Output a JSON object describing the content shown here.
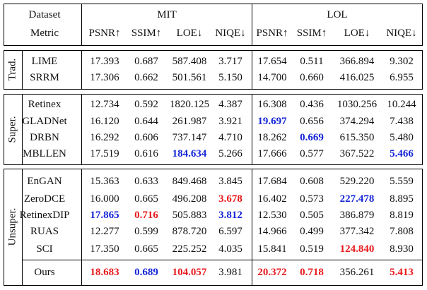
{
  "header": {
    "dataset_label": "Dataset",
    "metric_label": "Metric",
    "datasets": [
      "MIT",
      "LOL"
    ],
    "metrics": [
      "PSNR↑",
      "SSIM↑",
      "LOE↓",
      "NIQE↓",
      "PSNR↑",
      "SSIM↑",
      "LOE↓",
      "NIQE↓"
    ]
  },
  "groups": [
    {
      "label": "Trad.",
      "rows": [
        {
          "method": "LIME",
          "values": [
            "17.393",
            "0.687",
            "587.408",
            "3.717",
            "17.654",
            "0.511",
            "366.894",
            "9.302"
          ],
          "styles": [
            "",
            "",
            "",
            "",
            "",
            "",
            "",
            ""
          ]
        },
        {
          "method": "SRRM",
          "values": [
            "17.306",
            "0.662",
            "501.561",
            "5.150",
            "14.700",
            "0.660",
            "416.025",
            "6.955"
          ],
          "styles": [
            "",
            "",
            "",
            "",
            "",
            "",
            "",
            ""
          ]
        }
      ]
    },
    {
      "label": "Super.",
      "rows": [
        {
          "method": "Retinex",
          "values": [
            "12.734",
            "0.592",
            "1820.125",
            "4.387",
            "16.308",
            "0.436",
            "1030.256",
            "10.244"
          ],
          "styles": [
            "",
            "",
            "",
            "",
            "",
            "",
            "",
            ""
          ]
        },
        {
          "method": "GLADNet",
          "values": [
            "16.120",
            "0.644",
            "261.987",
            "3.921",
            "19.697",
            "0.656",
            "374.294",
            "7.438"
          ],
          "styles": [
            "",
            "",
            "",
            "",
            "blue",
            "",
            "",
            ""
          ]
        },
        {
          "method": "DRBN",
          "values": [
            "16.292",
            "0.606",
            "737.147",
            "4.710",
            "18.262",
            "0.669",
            "615.350",
            "5.480"
          ],
          "styles": [
            "",
            "",
            "",
            "",
            "",
            "blue",
            "",
            ""
          ]
        },
        {
          "method": "MBLLEN",
          "values": [
            "17.519",
            "0.616",
            "184.634",
            "5.266",
            "17.666",
            "0.577",
            "367.522",
            "5.466"
          ],
          "styles": [
            "",
            "",
            "blue",
            "",
            "",
            "",
            "",
            "blue"
          ]
        }
      ]
    },
    {
      "label": "Unsuper.",
      "rows": [
        {
          "method": "EnGAN",
          "values": [
            "15.363",
            "0.633",
            "849.468",
            "3.845",
            "17.684",
            "0.608",
            "529.220",
            "5.559"
          ],
          "styles": [
            "",
            "",
            "",
            "",
            "",
            "",
            "",
            ""
          ]
        },
        {
          "method": "ZeroDCE",
          "values": [
            "16.000",
            "0.665",
            "496.208",
            "3.678",
            "16.402",
            "0.573",
            "227.478",
            "8.895"
          ],
          "styles": [
            "",
            "",
            "",
            "red",
            "",
            "",
            "blue",
            ""
          ]
        },
        {
          "method": "RetinexDIP",
          "values": [
            "17.865",
            "0.716",
            "505.883",
            "3.812",
            "12.530",
            "0.505",
            "386.879",
            "8.819"
          ],
          "styles": [
            "blue",
            "red",
            "",
            "blue",
            "",
            "",
            "",
            ""
          ]
        },
        {
          "method": "RUAS",
          "values": [
            "12.277",
            "0.599",
            "878.720",
            "6.597",
            "14.966",
            "0.499",
            "377.342",
            "7.808"
          ],
          "styles": [
            "",
            "",
            "",
            "",
            "",
            "",
            "",
            ""
          ]
        },
        {
          "method": "SCI",
          "values": [
            "17.350",
            "0.665",
            "225.252",
            "4.035",
            "15.841",
            "0.519",
            "124.840",
            "8.930"
          ],
          "styles": [
            "",
            "",
            "",
            "",
            "",
            "",
            "red",
            ""
          ]
        },
        {
          "method": "Ours",
          "values": [
            "18.683",
            "0.689",
            "104.057",
            "3.981",
            "20.372",
            "0.718",
            "356.261",
            "5.413"
          ],
          "styles": [
            "red",
            "blue",
            "red",
            "",
            "red",
            "red",
            "",
            "red"
          ]
        }
      ]
    }
  ],
  "colors": {
    "best": "#e8191c",
    "second": "#1526d6"
  }
}
